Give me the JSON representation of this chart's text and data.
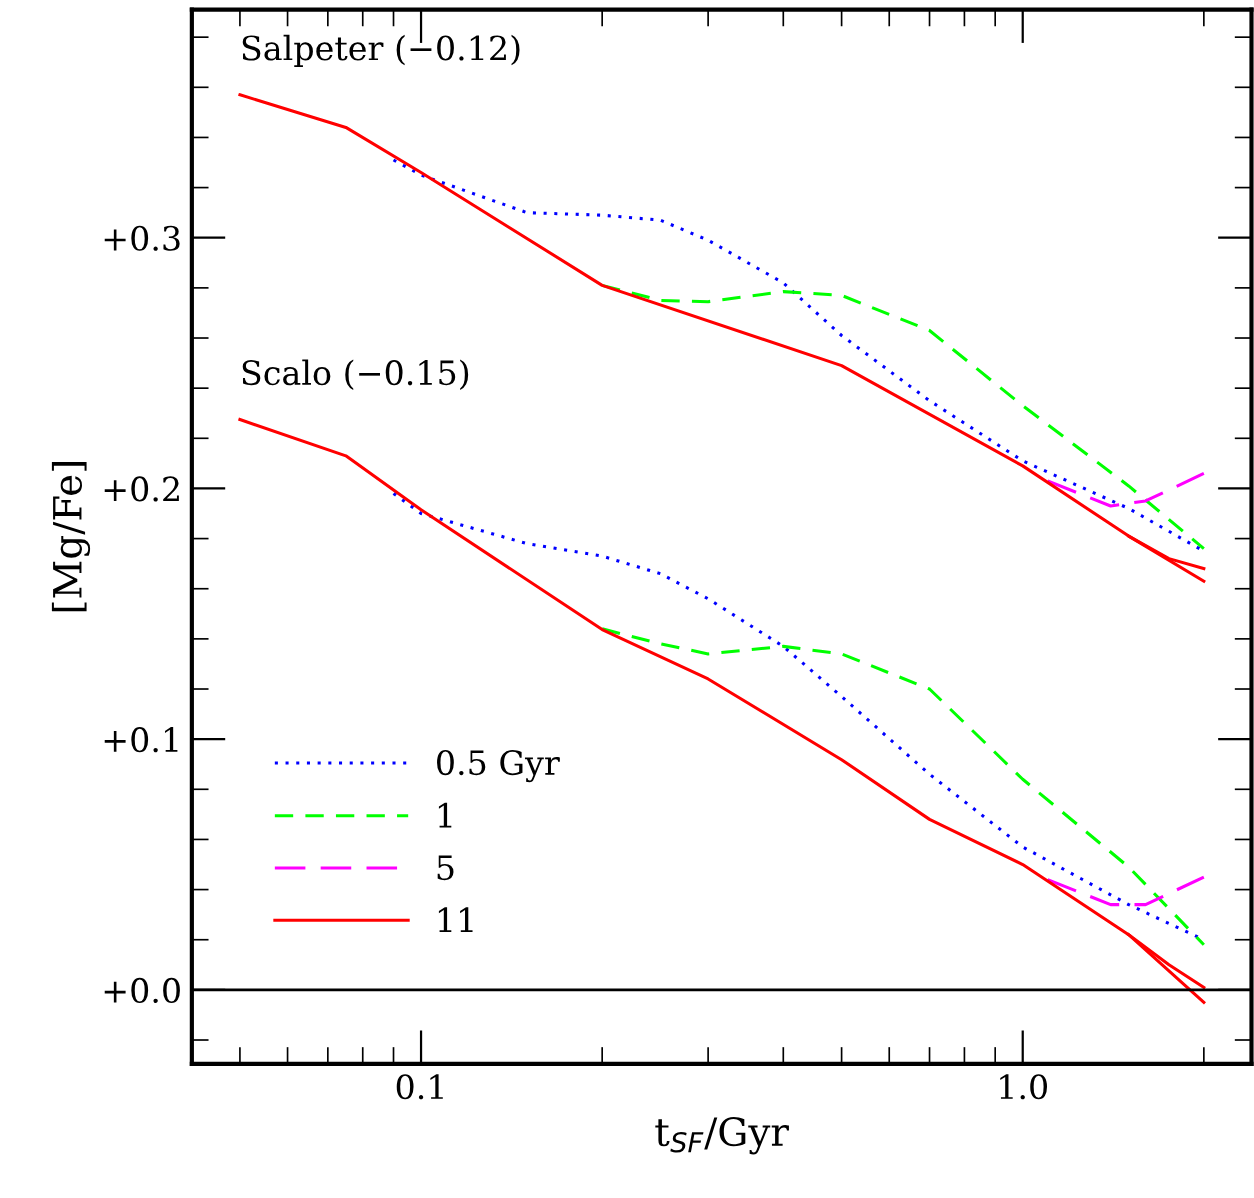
{
  "chart_data": {
    "type": "line",
    "xlabel": "t$_{SF}$/Gyr",
    "ylabel": "[Mg/Fe]",
    "log": "x",
    "grid": false,
    "legend": "bottom left",
    "marker": "none",
    "xlim": [
      0.0416,
      2.4
    ],
    "xticks": [
      0.1,
      {
        "value": 1.0,
        "label": "1.0"
      }
    ],
    "ylim": [
      -0.0295,
      0.391
    ],
    "yticks": [
      {
        "value": 0.0,
        "label": "+0.0"
      },
      {
        "value": 0.1,
        "label": "+0.1"
      },
      {
        "value": 0.2,
        "label": "+0.2"
      },
      {
        "value": 0.3,
        "label": "+0.3"
      }
    ],
    "ref_lines": [
      {
        "axis": "y",
        "value": 0.0,
        "color": "#000000",
        "line_style": "solid"
      }
    ],
    "annotations": [
      {
        "text": "Salpeter (−0.12)",
        "x": 0.05,
        "y": 0.357
      },
      {
        "text": "Scalo (−0.15)",
        "x": 0.05,
        "y": 0.2275
      }
    ],
    "series": [
      {
        "name": "0.5 Gyr",
        "color": "#0000ff",
        "line_style": "dotted",
        "x": [
          0.09,
          0.1,
          0.15,
          0.2,
          0.25,
          0.3,
          0.4,
          0.5,
          0.7,
          1.0,
          1.5,
          2.0
        ],
        "values": [
          0.331,
          0.325,
          0.31,
          0.309,
          0.307,
          0.299,
          0.282,
          0.261,
          0.235,
          0.211,
          0.192,
          0.175
        ]
      },
      {
        "name": "1",
        "color": "#00ff00",
        "line_style": "dashed",
        "x": [
          0.2,
          0.25,
          0.3,
          0.4,
          0.5,
          0.7,
          1.0,
          1.5,
          2.0
        ],
        "values": [
          0.281,
          0.275,
          0.2745,
          0.2785,
          0.277,
          0.263,
          0.233,
          0.201,
          0.176
        ]
      },
      {
        "name": "5",
        "color": "#ff00ff",
        "line_style": "dashed",
        "x": [
          1.1,
          1.4,
          1.6,
          2.0
        ],
        "values": [
          0.203,
          0.193,
          0.195,
          0.206
        ]
      },
      {
        "name": "11",
        "color": "#ff0000",
        "line_style": "solid",
        "x": [
          0.05,
          0.075,
          0.1,
          0.2,
          0.5,
          1.0,
          1.5,
          2.0
        ],
        "values": [
          0.357,
          0.344,
          0.326,
          0.281,
          0.249,
          0.209,
          0.181,
          0.163
        ]
      },
      {
        "color": "#ff0000",
        "line_style": "solid",
        "x": [
          1.5,
          1.75,
          2.0
        ],
        "values": [
          0.181,
          0.172,
          0.168
        ]
      },
      {
        "color": "#0000ff",
        "line_style": "dotted",
        "x": [
          0.09,
          0.1,
          0.15,
          0.2,
          0.25,
          0.3,
          0.4,
          0.5,
          0.7,
          1.0,
          1.5,
          2.0
        ],
        "values": [
          0.198,
          0.19,
          0.178,
          0.173,
          0.166,
          0.156,
          0.137,
          0.117,
          0.086,
          0.057,
          0.034,
          0.02
        ]
      },
      {
        "color": "#00ff00",
        "line_style": "dashed",
        "x": [
          0.2,
          0.25,
          0.3,
          0.4,
          0.5,
          0.7,
          1.0,
          1.5,
          2.0
        ],
        "values": [
          0.144,
          0.138,
          0.134,
          0.137,
          0.134,
          0.12,
          0.084,
          0.049,
          0.018
        ]
      },
      {
        "color": "#ff00ff",
        "line_style": "dashed",
        "x": [
          1.1,
          1.4,
          1.6,
          2.0
        ],
        "values": [
          0.044,
          0.034,
          0.034,
          0.045
        ]
      },
      {
        "color": "#ff0000",
        "line_style": "solid",
        "x": [
          0.05,
          0.075,
          0.1,
          0.2,
          0.3,
          0.5,
          0.7,
          1.0,
          1.5,
          2.0
        ],
        "values": [
          0.2275,
          0.213,
          0.1915,
          0.1437,
          0.124,
          0.0918,
          0.068,
          0.05,
          0.022,
          -0.005
        ]
      },
      {
        "color": "#ff0000",
        "line_style": "solid",
        "x": [
          1.5,
          1.75,
          2.0
        ],
        "values": [
          0.022,
          0.01,
          0.001
        ]
      }
    ]
  }
}
